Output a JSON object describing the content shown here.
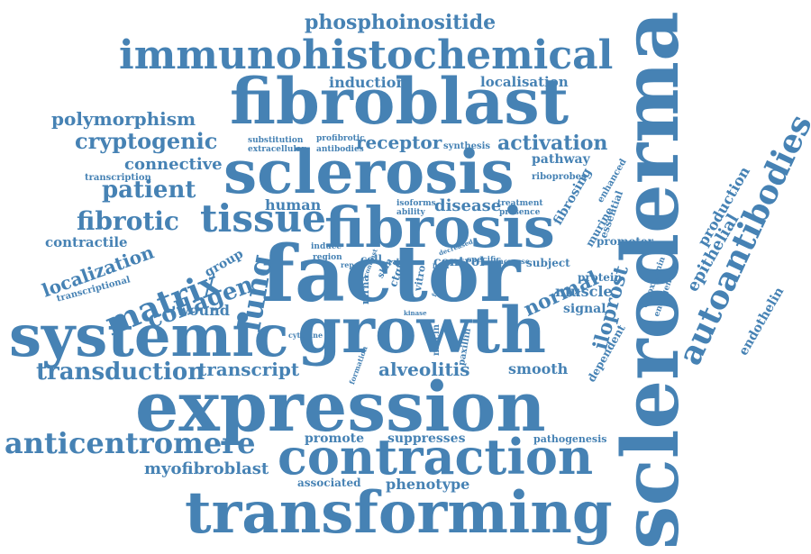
{
  "accent_color": "#4682b4",
  "background_color": "#ffffff",
  "words": [
    {
      "id": "scleroderma",
      "text": "scleroderma"
    },
    {
      "id": "expression",
      "text": "expression"
    },
    {
      "id": "factor",
      "text": "factor"
    },
    {
      "id": "fibroblast",
      "text": "fibroblast"
    },
    {
      "id": "growth",
      "text": "growth"
    },
    {
      "id": "systemic",
      "text": "systemic"
    },
    {
      "id": "transforming",
      "text": "transforming"
    },
    {
      "id": "sclerosis",
      "text": "sclerosis"
    },
    {
      "id": "fibrosis",
      "text": "fibrosis"
    },
    {
      "id": "contraction",
      "text": "contraction"
    },
    {
      "id": "immunohistochemical",
      "text": "immunohistochemical"
    },
    {
      "id": "autoantibodies",
      "text": "autoantibodies"
    },
    {
      "id": "tissue",
      "text": "tissue"
    },
    {
      "id": "matrix",
      "text": "matrix"
    },
    {
      "id": "lung",
      "text": "lung"
    },
    {
      "id": "anticentromere",
      "text": "anticentromere"
    },
    {
      "id": "transduction",
      "text": "transduction"
    },
    {
      "id": "collagen",
      "text": "collagen"
    },
    {
      "id": "fibrotic",
      "text": "fibrotic"
    },
    {
      "id": "patient",
      "text": "patient"
    },
    {
      "id": "cryptogenic",
      "text": "cryptogenic"
    },
    {
      "id": "polymorphism",
      "text": "polymorphism"
    },
    {
      "id": "phosphoinositide",
      "text": "phosphoinositide"
    },
    {
      "id": "localization",
      "text": "localization"
    },
    {
      "id": "alveolitis",
      "text": "alveolitis"
    },
    {
      "id": "transcript",
      "text": "transcript"
    },
    {
      "id": "activation",
      "text": "activation"
    },
    {
      "id": "receptor",
      "text": "receptor"
    },
    {
      "id": "myofibroblast",
      "text": "myofibroblast"
    },
    {
      "id": "normal",
      "text": "normal"
    },
    {
      "id": "epithelial",
      "text": "epithelial"
    },
    {
      "id": "iloprost",
      "text": "iloprost"
    },
    {
      "id": "connective",
      "text": "connective"
    },
    {
      "id": "disease",
      "text": "disease"
    },
    {
      "id": "smooth",
      "text": "smooth"
    },
    {
      "id": "phenotype",
      "text": "phenotype"
    },
    {
      "id": "promote",
      "text": "promote"
    },
    {
      "id": "suppresses",
      "text": "suppresses"
    },
    {
      "id": "human",
      "text": "human"
    },
    {
      "id": "wound",
      "text": "wound"
    },
    {
      "id": "induction",
      "text": "induction"
    },
    {
      "id": "localisation",
      "text": "localisation"
    },
    {
      "id": "fibrosing",
      "text": "fibrosing"
    },
    {
      "id": "production",
      "text": "production"
    },
    {
      "id": "endothelin",
      "text": "endothelin"
    },
    {
      "id": "muscle",
      "text": "muscle"
    },
    {
      "id": "contractile",
      "text": "contractile"
    },
    {
      "id": "group",
      "text": "group"
    },
    {
      "id": "control",
      "text": "control"
    },
    {
      "id": "dependent",
      "text": "dependent"
    },
    {
      "id": "murine",
      "text": "murine"
    },
    {
      "id": "essential",
      "text": "essential"
    },
    {
      "id": "signal",
      "text": "signal"
    },
    {
      "id": "promoter",
      "text": "promoter"
    },
    {
      "id": "pathway",
      "text": "pathway"
    },
    {
      "id": "associated",
      "text": "associated"
    },
    {
      "id": "pathogenesis",
      "text": "pathogenesis"
    },
    {
      "id": "subject",
      "text": "subject"
    },
    {
      "id": "cell",
      "text": "cell"
    },
    {
      "id": "transcriptional",
      "text": "transcriptional"
    },
    {
      "id": "transcription",
      "text": "transcription"
    },
    {
      "id": "protein",
      "text": "protein"
    },
    {
      "id": "riboprobes",
      "text": "riboprobes"
    },
    {
      "id": "mrna",
      "text": "mrna"
    },
    {
      "id": "enhanced",
      "text": "enhanced"
    },
    {
      "id": "ctgf",
      "text": "ctgf"
    },
    {
      "id": "synthesis",
      "text": "synthesis"
    },
    {
      "id": "substitution",
      "text": "substitution"
    },
    {
      "id": "extracellular",
      "text": "extracellular"
    },
    {
      "id": "profibrotic",
      "text": "profibrotic"
    },
    {
      "id": "antibodies",
      "text": "antibodies"
    },
    {
      "id": "isoforms",
      "text": "isoforms"
    },
    {
      "id": "ability",
      "text": "ability"
    },
    {
      "id": "treatment",
      "text": "treatment"
    },
    {
      "id": "presence",
      "text": "presence"
    },
    {
      "id": "induce",
      "text": "induce"
    },
    {
      "id": "region",
      "text": "region"
    },
    {
      "id": "repair",
      "text": "repair"
    },
    {
      "id": "specific",
      "text": "specific"
    },
    {
      "id": "increase",
      "text": "increase"
    },
    {
      "id": "vitro",
      "text": "vitro"
    },
    {
      "id": "skin",
      "text": "skin"
    },
    {
      "id": "digoxigenin",
      "text": "digoxigenin"
    },
    {
      "id": "endogenous",
      "text": "endogenous"
    },
    {
      "id": "cytokine",
      "text": "cytokine"
    },
    {
      "id": "mucin",
      "text": "mucin"
    },
    {
      "id": "paxillin",
      "text": "paxillin"
    },
    {
      "id": "formation",
      "text": "formation"
    },
    {
      "id": "ratio",
      "text": "ratio"
    },
    {
      "id": "allele",
      "text": "allele"
    },
    {
      "id": "level",
      "text": "level"
    },
    {
      "id": "function",
      "text": "function"
    },
    {
      "id": "kinase",
      "text": "kinase"
    },
    {
      "id": "decreased",
      "text": "decreased"
    },
    {
      "id": "contrast",
      "text": "contrast"
    }
  ]
}
